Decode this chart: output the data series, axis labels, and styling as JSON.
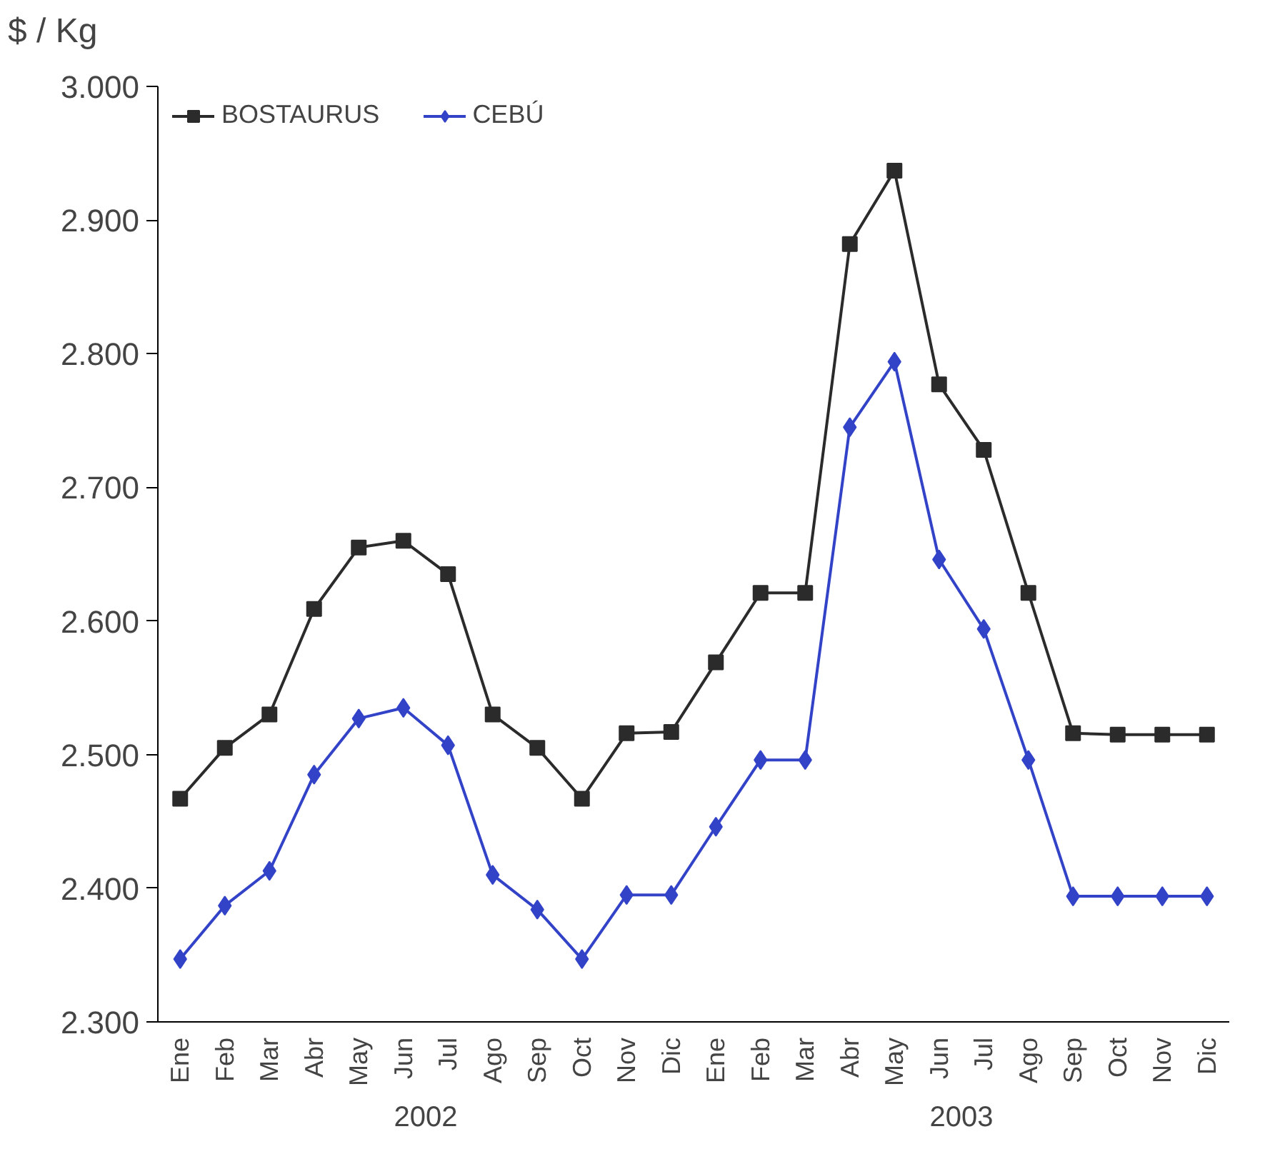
{
  "chart_data": {
    "type": "line",
    "ylabel": "$ / Kg",
    "categories": [
      "Ene",
      "Feb",
      "Mar",
      "Abr",
      "May",
      "Jun",
      "Jul",
      "Ago",
      "Sep",
      "Oct",
      "Nov",
      "Dic",
      "Ene",
      "Feb",
      "Mar",
      "Abr",
      "May",
      "Jun",
      "Jul",
      "Ago",
      "Sep",
      "Oct",
      "Nov",
      "Dic"
    ],
    "annotations": [
      "2002",
      "2003"
    ],
    "series": [
      {
        "name": "BOSTAURUS",
        "color": "#2b2b2b",
        "marker": "square",
        "values": [
          2467,
          2505,
          2530,
          2609,
          2655,
          2660,
          2635,
          2530,
          2505,
          2467,
          2516,
          2517,
          2569,
          2621,
          2621,
          2882,
          2937,
          2777,
          2728,
          2621,
          2516,
          2515,
          2515,
          2515
        ]
      },
      {
        "name": "CEBÚ",
        "color": "#3343c8",
        "marker": "diamond",
        "values": [
          2347,
          2387,
          2413,
          2485,
          2527,
          2535,
          2507,
          2410,
          2384,
          2347,
          2395,
          2395,
          2446,
          2496,
          2496,
          2745,
          2794,
          2646,
          2594,
          2496,
          2394,
          2394,
          2394,
          2394
        ]
      }
    ],
    "ylim": [
      2300,
      3000
    ],
    "yticks": [
      {
        "value": 2300,
        "label": "2.300"
      },
      {
        "value": 2400,
        "label": "2.400"
      },
      {
        "value": 2500,
        "label": "2.500"
      },
      {
        "value": 2600,
        "label": "2.600"
      },
      {
        "value": 2700,
        "label": "2.700"
      },
      {
        "value": 2800,
        "label": "2.800"
      },
      {
        "value": 2900,
        "label": "2.900"
      },
      {
        "value": 3000,
        "label": "3.000"
      }
    ],
    "grid": false,
    "legend": "top left",
    "line_style": "solid"
  }
}
